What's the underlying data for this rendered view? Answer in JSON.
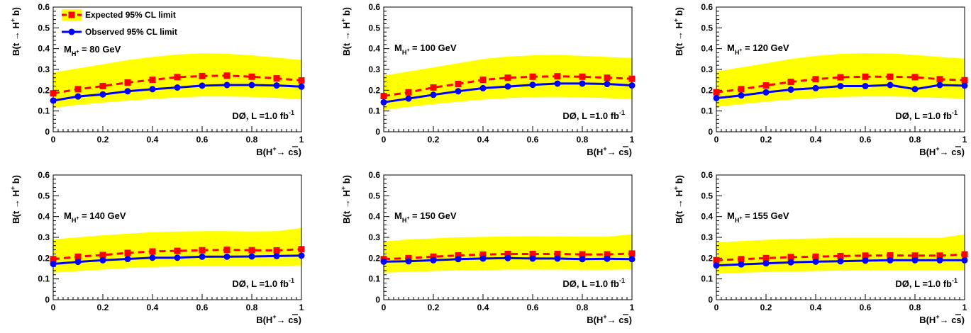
{
  "figure": {
    "experiment_label": "DØ, L =1.0 fb",
    "experiment_label_sup": "-1",
    "xlabel_main": "B(H",
    "xlabel_sup": "+",
    "xlabel_tail": "→ cs",
    "xlabel_close": ")",
    "ylabel_main": "B(t → H",
    "ylabel_sup": "+",
    "ylabel_tail": " b)",
    "mass_prefix": "M",
    "mass_sub": "H",
    "mass_subsup": "+",
    "x_ticks": [
      "0",
      "0.2",
      "0.4",
      "0.6",
      "0.8",
      "1"
    ],
    "y_ticks": [
      "0",
      "0.1",
      "0.2",
      "0.3",
      "0.4",
      "0.5",
      "0.6"
    ]
  },
  "legend": {
    "expected_label": "Expected 95% CL limit",
    "observed_label": "Observed 95% CL limit"
  },
  "colors": {
    "expected": "#ff0000",
    "observed": "#0000ff",
    "band": "#ffff00"
  },
  "chart_data": [
    {
      "type": "line",
      "mass_label": "= 80 GeV",
      "x": [
        0,
        0.1,
        0.2,
        0.3,
        0.4,
        0.5,
        0.6,
        0.7,
        0.8,
        0.9,
        1.0
      ],
      "xlim": [
        0,
        1
      ],
      "ylim": [
        0,
        0.6
      ],
      "series": [
        {
          "name": "Expected 95% CL limit",
          "values": [
            0.185,
            0.205,
            0.22,
            0.237,
            0.25,
            0.263,
            0.268,
            0.27,
            0.265,
            0.257,
            0.247
          ]
        },
        {
          "name": "Observed 95% CL limit",
          "values": [
            0.15,
            0.17,
            0.18,
            0.195,
            0.205,
            0.213,
            0.222,
            0.225,
            0.225,
            0.223,
            0.217
          ]
        }
      ],
      "band_upper": [
        0.285,
        0.305,
        0.325,
        0.345,
        0.36,
        0.372,
        0.378,
        0.376,
        0.368,
        0.357,
        0.345
      ],
      "band_lower": [
        0.115,
        0.13,
        0.14,
        0.15,
        0.158,
        0.165,
        0.17,
        0.17,
        0.168,
        0.163,
        0.158
      ]
    },
    {
      "type": "line",
      "mass_label": "= 100 GeV",
      "x": [
        0,
        0.1,
        0.2,
        0.3,
        0.4,
        0.5,
        0.6,
        0.7,
        0.8,
        0.9,
        1.0
      ],
      "xlim": [
        0,
        1
      ],
      "ylim": [
        0,
        0.6
      ],
      "series": [
        {
          "name": "Expected 95% CL limit",
          "values": [
            0.172,
            0.19,
            0.213,
            0.23,
            0.25,
            0.26,
            0.265,
            0.267,
            0.265,
            0.26,
            0.255
          ]
        },
        {
          "name": "Observed 95% CL limit",
          "values": [
            0.142,
            0.16,
            0.178,
            0.195,
            0.21,
            0.218,
            0.226,
            0.232,
            0.232,
            0.23,
            0.223
          ]
        }
      ],
      "band_upper": [
        0.27,
        0.29,
        0.31,
        0.33,
        0.35,
        0.362,
        0.368,
        0.37,
        0.365,
        0.36,
        0.355
      ],
      "band_lower": [
        0.105,
        0.12,
        0.133,
        0.145,
        0.155,
        0.162,
        0.167,
        0.168,
        0.166,
        0.162,
        0.158
      ]
    },
    {
      "type": "line",
      "mass_label": "= 120 GeV",
      "x": [
        0,
        0.1,
        0.2,
        0.3,
        0.4,
        0.5,
        0.6,
        0.7,
        0.8,
        0.9,
        1.0
      ],
      "xlim": [
        0,
        1
      ],
      "ylim": [
        0,
        0.6
      ],
      "series": [
        {
          "name": "Expected 95% CL limit",
          "values": [
            0.19,
            0.205,
            0.223,
            0.24,
            0.253,
            0.262,
            0.265,
            0.265,
            0.263,
            0.253,
            0.248
          ]
        },
        {
          "name": "Observed 95% CL limit",
          "values": [
            0.162,
            0.175,
            0.19,
            0.203,
            0.21,
            0.22,
            0.22,
            0.225,
            0.205,
            0.225,
            0.222
          ]
        }
      ],
      "band_upper": [
        0.29,
        0.31,
        0.33,
        0.35,
        0.365,
        0.375,
        0.378,
        0.377,
        0.37,
        0.36,
        0.352
      ],
      "band_lower": [
        0.12,
        0.133,
        0.145,
        0.155,
        0.162,
        0.168,
        0.17,
        0.17,
        0.168,
        0.163,
        0.16
      ]
    },
    {
      "type": "line",
      "mass_label": "= 140 GeV",
      "x": [
        0,
        0.1,
        0.2,
        0.3,
        0.4,
        0.5,
        0.6,
        0.7,
        0.8,
        0.9,
        1.0
      ],
      "xlim": [
        0,
        1
      ],
      "ylim": [
        0,
        0.6
      ],
      "series": [
        {
          "name": "Expected 95% CL limit",
          "values": [
            0.195,
            0.207,
            0.215,
            0.225,
            0.232,
            0.235,
            0.238,
            0.24,
            0.238,
            0.237,
            0.243
          ]
        },
        {
          "name": "Observed 95% CL limit",
          "values": [
            0.172,
            0.182,
            0.19,
            0.196,
            0.202,
            0.202,
            0.207,
            0.207,
            0.208,
            0.21,
            0.212
          ]
        }
      ],
      "band_upper": [
        0.29,
        0.3,
        0.31,
        0.318,
        0.325,
        0.328,
        0.33,
        0.33,
        0.328,
        0.33,
        0.345
      ],
      "band_lower": [
        0.13,
        0.138,
        0.145,
        0.152,
        0.157,
        0.16,
        0.162,
        0.163,
        0.162,
        0.163,
        0.165
      ]
    },
    {
      "type": "line",
      "mass_label": "= 150 GeV",
      "x": [
        0,
        0.1,
        0.2,
        0.3,
        0.4,
        0.5,
        0.6,
        0.7,
        0.8,
        0.9,
        1.0
      ],
      "xlim": [
        0,
        1
      ],
      "ylim": [
        0,
        0.6
      ],
      "series": [
        {
          "name": "Expected 95% CL limit",
          "values": [
            0.195,
            0.2,
            0.207,
            0.213,
            0.217,
            0.22,
            0.22,
            0.22,
            0.218,
            0.218,
            0.222
          ]
        },
        {
          "name": "Observed 95% CL limit",
          "values": [
            0.183,
            0.185,
            0.19,
            0.195,
            0.198,
            0.2,
            0.198,
            0.198,
            0.195,
            0.197,
            0.195
          ]
        }
      ],
      "band_upper": [
        0.28,
        0.29,
        0.295,
        0.3,
        0.302,
        0.304,
        0.305,
        0.304,
        0.303,
        0.303,
        0.315
      ],
      "band_lower": [
        0.13,
        0.134,
        0.138,
        0.141,
        0.143,
        0.145,
        0.145,
        0.145,
        0.144,
        0.144,
        0.146
      ]
    },
    {
      "type": "line",
      "mass_label": "= 155 GeV",
      "x": [
        0,
        0.1,
        0.2,
        0.3,
        0.4,
        0.5,
        0.6,
        0.7,
        0.8,
        0.9,
        1.0
      ],
      "xlim": [
        0,
        1
      ],
      "ylim": [
        0,
        0.6
      ],
      "series": [
        {
          "name": "Expected 95% CL limit",
          "values": [
            0.19,
            0.195,
            0.2,
            0.205,
            0.207,
            0.21,
            0.212,
            0.213,
            0.212,
            0.212,
            0.218
          ]
        },
        {
          "name": "Observed 95% CL limit",
          "values": [
            0.165,
            0.17,
            0.175,
            0.18,
            0.183,
            0.185,
            0.188,
            0.19,
            0.19,
            0.19,
            0.19
          ]
        }
      ],
      "band_upper": [
        0.275,
        0.282,
        0.288,
        0.292,
        0.295,
        0.297,
        0.298,
        0.298,
        0.297,
        0.297,
        0.315
      ],
      "band_lower": [
        0.125,
        0.13,
        0.133,
        0.136,
        0.138,
        0.14,
        0.141,
        0.142,
        0.142,
        0.142,
        0.143
      ]
    }
  ]
}
